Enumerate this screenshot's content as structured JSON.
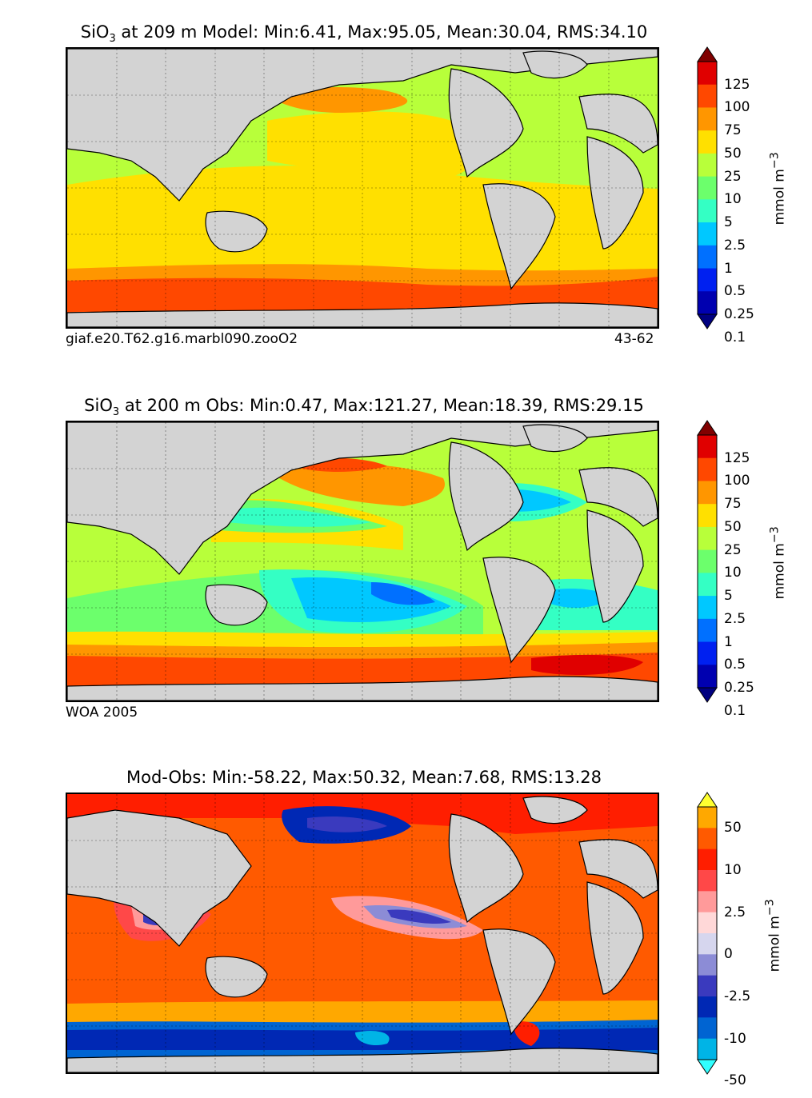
{
  "panels": [
    {
      "title_species": "SiO",
      "title_sub": "3",
      "title_rest": " at 209 m Model: Min:6.41, Max:95.05, Mean:30.04, RMS:34.10",
      "caption_left": "giaf.e20.T62.g16.marbl090.zooO2",
      "caption_right": "43-62",
      "units": "mmol m",
      "units_sup": "−3",
      "colorbar": {
        "labels": [
          "125",
          "100",
          "75",
          "50",
          "25",
          "10",
          "5",
          "2.5",
          "1",
          "0.5",
          "0.25",
          "0.1"
        ],
        "colors": [
          "#800000",
          "#e00000",
          "#ff4800",
          "#ff9600",
          "#ffe000",
          "#b8ff3a",
          "#6cff6c",
          "#34ffc4",
          "#00c8ff",
          "#0070ff",
          "#0020f0",
          "#0000b0",
          "#000080"
        ]
      }
    },
    {
      "title_species": "SiO",
      "title_sub": "3",
      "title_rest": " at 200 m Obs: Min:0.47, Max:121.27, Mean:18.39, RMS:29.15",
      "caption_left": "WOA 2005",
      "caption_right": "",
      "units": "mmol m",
      "units_sup": "−3",
      "colorbar": {
        "labels": [
          "125",
          "100",
          "75",
          "50",
          "25",
          "10",
          "5",
          "2.5",
          "1",
          "0.5",
          "0.25",
          "0.1"
        ],
        "colors": [
          "#800000",
          "#e00000",
          "#ff4800",
          "#ff9600",
          "#ffe000",
          "#b8ff3a",
          "#6cff6c",
          "#34ffc4",
          "#00c8ff",
          "#0070ff",
          "#0020f0",
          "#0000b0",
          "#000080"
        ]
      }
    },
    {
      "title_species": "",
      "title_sub": "",
      "title_rest": "Mod-Obs: Min:-58.22, Max:50.32, Mean:7.68, RMS:13.28",
      "caption_left": "",
      "caption_right": "",
      "units": "mmol m",
      "units_sup": "−3",
      "colorbar": {
        "labels": [
          "50",
          "",
          "10",
          "",
          "2.5",
          "",
          "0",
          "",
          "-2.5",
          "",
          "-10",
          "",
          "-50"
        ],
        "colors": [
          "#ffff30",
          "#ffa800",
          "#ff5a00",
          "#ff1e00",
          "#ff4848",
          "#ff9a9a",
          "#ffd8d8",
          "#d6d6ee",
          "#8c8cd6",
          "#3a3abe",
          "#0028b4",
          "#0064d2",
          "#00b4e6",
          "#30ffff"
        ]
      }
    }
  ]
}
